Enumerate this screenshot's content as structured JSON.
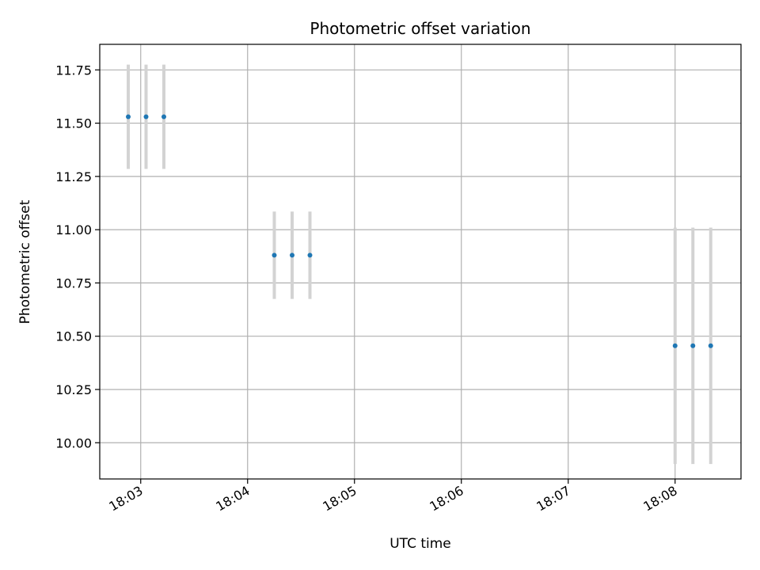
{
  "chart_data": {
    "type": "scatter",
    "title": "Photometric offset variation",
    "xlabel": "UTC time",
    "ylabel": "Photometric offset",
    "x_axis_kind": "time",
    "xlim": [
      "18:02:37",
      "18:08:37"
    ],
    "ylim": [
      9.83,
      11.87
    ],
    "grid": true,
    "x_ticks": [
      "18:03",
      "18:04",
      "18:05",
      "18:06",
      "18:07",
      "18:08"
    ],
    "y_ticks": [
      "10.00",
      "10.25",
      "10.50",
      "10.75",
      "11.00",
      "11.25",
      "11.50",
      "11.75"
    ],
    "x_tick_rotation": 30,
    "series": [
      {
        "marker_color": "#1f77b4",
        "errorbar_color": "#d3d3d3",
        "points": [
          {
            "x": "18:02:53",
            "y": 11.53,
            "yerr": 0.245
          },
          {
            "x": "18:03:03",
            "y": 11.53,
            "yerr": 0.245
          },
          {
            "x": "18:03:13",
            "y": 11.53,
            "yerr": 0.245
          },
          {
            "x": "18:04:15",
            "y": 10.88,
            "yerr": 0.205
          },
          {
            "x": "18:04:25",
            "y": 10.88,
            "yerr": 0.205
          },
          {
            "x": "18:04:35",
            "y": 10.88,
            "yerr": 0.205
          },
          {
            "x": "18:08:00",
            "y": 10.455,
            "yerr": 0.555
          },
          {
            "x": "18:08:10",
            "y": 10.455,
            "yerr": 0.555
          },
          {
            "x": "18:08:20",
            "y": 10.455,
            "yerr": 0.555
          }
        ]
      }
    ]
  }
}
